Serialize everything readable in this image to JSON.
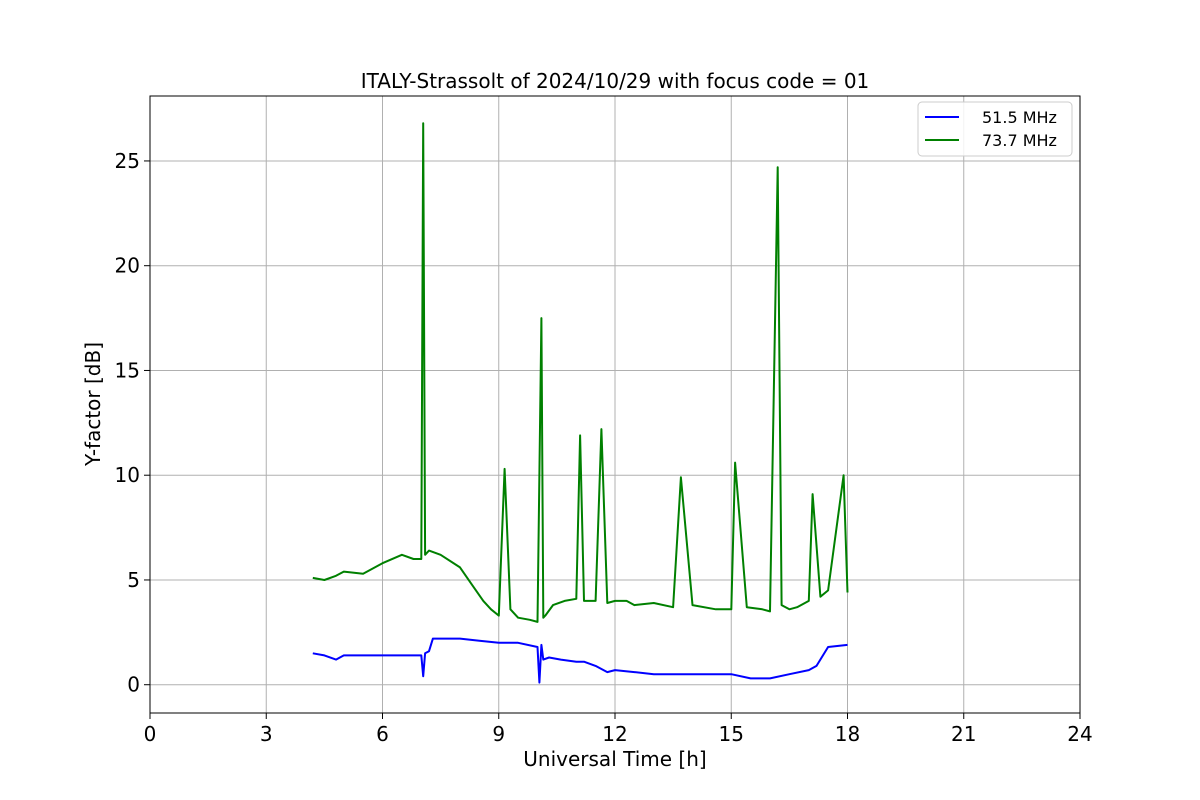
{
  "chart_data": {
    "type": "line",
    "title": "ITALY-Strassolt of 2024/10/29 with focus code = 01",
    "xlabel": "Universal Time [h]",
    "ylabel": "Y-factor [dB]",
    "xlim": [
      0,
      24
    ],
    "ylim": [
      -1.35,
      28.1
    ],
    "xticks": [
      0,
      3,
      6,
      9,
      12,
      15,
      18,
      21,
      24
    ],
    "yticks": [
      0,
      5,
      10,
      15,
      20,
      25
    ],
    "grid": true,
    "legend_position": "upper right",
    "series": [
      {
        "name": "51.5 MHz",
        "color": "#0000ff",
        "x": [
          4.2,
          4.5,
          4.8,
          5.0,
          5.5,
          6.0,
          6.5,
          7.0,
          7.05,
          7.1,
          7.2,
          7.3,
          7.6,
          8.0,
          8.5,
          9.0,
          9.5,
          10.0,
          10.05,
          10.1,
          10.15,
          10.3,
          10.6,
          11.0,
          11.2,
          11.5,
          11.8,
          12.0,
          12.5,
          13.0,
          13.5,
          14.0,
          14.5,
          15.0,
          15.5,
          16.0,
          16.5,
          17.0,
          17.2,
          17.5,
          18.0
        ],
        "y": [
          1.5,
          1.4,
          1.2,
          1.4,
          1.4,
          1.4,
          1.4,
          1.4,
          0.4,
          1.5,
          1.6,
          2.2,
          2.2,
          2.2,
          2.1,
          2.0,
          2.0,
          1.8,
          0.1,
          1.9,
          1.2,
          1.3,
          1.2,
          1.1,
          1.1,
          0.9,
          0.6,
          0.7,
          0.6,
          0.5,
          0.5,
          0.5,
          0.5,
          0.5,
          0.3,
          0.3,
          0.5,
          0.7,
          0.9,
          1.8,
          1.9
        ]
      },
      {
        "name": "73.7 MHz",
        "color": "#008000",
        "x": [
          4.2,
          4.5,
          4.8,
          5.0,
          5.5,
          6.0,
          6.5,
          6.8,
          7.0,
          7.05,
          7.1,
          7.2,
          7.5,
          8.0,
          8.3,
          8.6,
          8.8,
          9.0,
          9.15,
          9.3,
          9.5,
          9.8,
          10.0,
          10.1,
          10.15,
          10.2,
          10.4,
          10.7,
          11.0,
          11.1,
          11.2,
          11.5,
          11.65,
          11.8,
          12.0,
          12.3,
          12.5,
          13.0,
          13.5,
          13.7,
          14.0,
          14.6,
          15.0,
          15.1,
          15.4,
          15.8,
          16.0,
          16.2,
          16.3,
          16.5,
          16.7,
          17.0,
          17.1,
          17.3,
          17.5,
          17.9,
          18.0
        ],
        "y": [
          5.1,
          5.0,
          5.2,
          5.4,
          5.3,
          5.8,
          6.2,
          6.0,
          6.0,
          26.8,
          6.2,
          6.4,
          6.2,
          5.6,
          4.8,
          4.0,
          3.6,
          3.3,
          10.3,
          3.6,
          3.2,
          3.1,
          3.0,
          17.5,
          3.2,
          3.3,
          3.8,
          4.0,
          4.1,
          11.9,
          4.0,
          4.0,
          12.2,
          3.9,
          4.0,
          4.0,
          3.8,
          3.9,
          3.7,
          9.9,
          3.8,
          3.6,
          3.6,
          10.6,
          3.7,
          3.6,
          3.5,
          24.7,
          3.8,
          3.6,
          3.7,
          4.0,
          9.1,
          4.2,
          4.5,
          10.0,
          4.4
        ]
      }
    ]
  }
}
